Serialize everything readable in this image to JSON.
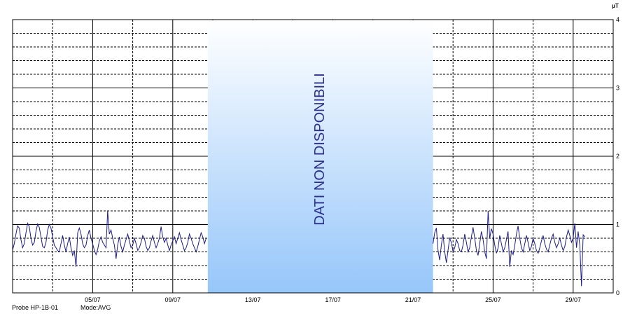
{
  "chart_data": {
    "type": "line",
    "unit_label": "µT",
    "ylim": [
      0,
      4
    ],
    "y_ticks": [
      "0",
      "1",
      "2",
      "3",
      "4"
    ],
    "x_start": "2021-07-01",
    "x_end": "2021-07-31",
    "x_ticks": [
      {
        "date": "2021-07-05",
        "label": "05/07"
      },
      {
        "date": "2021-07-09",
        "label": "09/07"
      },
      {
        "date": "2021-07-13",
        "label": "13/07"
      },
      {
        "date": "2021-07-17",
        "label": "17/07"
      },
      {
        "date": "2021-07-21",
        "label": "21/07"
      },
      {
        "date": "2021-07-25",
        "label": "25/07"
      },
      {
        "date": "2021-07-29",
        "label": "29/07"
      }
    ],
    "grid": true,
    "no_data": {
      "from": "2021-07-10 18:00",
      "to": "2021-07-22 00:00",
      "label": "DATI NON DISPONIBILI"
    },
    "series": [
      {
        "color": "#1c1c8c",
        "segments": [
          {
            "start": "2021-07-01 00:00",
            "step_hours": 2,
            "values": [
              0.63,
              0.72,
              0.86,
              0.98,
              0.95,
              0.78,
              0.66,
              0.72,
              0.88,
              1.02,
              0.97,
              0.8,
              0.7,
              0.74,
              0.9,
              1.01,
              0.96,
              0.82,
              0.68,
              0.66,
              0.74,
              0.92,
              1.0,
              0.95,
              0.82,
              0.7,
              0.66,
              0.62,
              0.6,
              0.72,
              0.84,
              0.7,
              0.6,
              0.72,
              0.82,
              0.66,
              0.55,
              0.62,
              0.72,
              0.88,
              0.95,
              0.86,
              0.72,
              0.66,
              0.7,
              0.84,
              0.92,
              0.8,
              0.72,
              0.62,
              0.56,
              0.64,
              0.76,
              0.82,
              0.74,
              0.7,
              0.66,
              0.72,
              0.86,
              0.92,
              0.8,
              0.7,
              0.62,
              0.7,
              0.82,
              0.68,
              0.6,
              0.7,
              0.78,
              0.86,
              0.76,
              0.66,
              0.7,
              0.8,
              0.72,
              0.62,
              0.66,
              0.74,
              0.84,
              0.8,
              0.68,
              0.62,
              0.66,
              0.76,
              0.84,
              0.74,
              0.66,
              0.72,
              0.8,
              0.9,
              0.82,
              0.74,
              0.8,
              0.7,
              0.62,
              0.7,
              0.76,
              0.82,
              0.72,
              0.8,
              0.88,
              0.78,
              0.7,
              0.62,
              0.66,
              0.74,
              0.86,
              0.8,
              0.72,
              0.66,
              0.6,
              0.68,
              0.78,
              0.88,
              0.82,
              0.72,
              0.8
            ],
            "spikes": [
              {
                "index": 38,
                "value": 0.38
              },
              {
                "index": 57,
                "value": 1.2
              },
              {
                "index": 62,
                "value": 0.5
              },
              {
                "index": 89,
                "value": 0.97
              }
            ]
          },
          {
            "start": "2021-07-22 00:00",
            "step_hours": 2,
            "values": [
              0.72,
              0.88,
              0.95,
              0.62,
              0.48,
              0.7,
              0.86,
              0.6,
              0.44,
              0.62,
              0.8,
              0.74,
              0.6,
              0.66,
              0.78,
              0.72,
              0.62,
              0.6,
              0.7,
              0.86,
              0.74,
              0.6,
              0.66,
              0.82,
              0.96,
              0.8,
              0.62,
              0.55,
              0.72,
              0.9,
              0.78,
              0.6,
              0.5,
              0.62,
              0.8,
              0.94,
              0.86,
              0.7,
              0.58,
              0.66,
              0.84,
              0.72,
              0.6,
              0.66,
              0.78,
              0.9,
              0.76,
              0.62,
              0.56,
              0.7,
              0.86,
              0.98,
              0.8,
              0.66,
              0.6,
              0.72,
              0.84,
              0.74,
              0.62,
              0.68,
              0.8,
              0.72,
              0.62,
              0.58,
              0.66,
              0.76,
              0.84,
              0.72,
              0.64,
              0.6,
              0.7,
              0.8,
              0.86,
              0.74,
              0.66,
              0.72,
              0.8,
              0.7,
              0.62,
              0.68,
              0.82,
              0.92,
              0.84,
              0.74,
              0.8,
              0.72,
              0.66,
              0.6,
              0.7,
              0.62,
              0.55,
              0.82
            ],
            "spikes": [
              {
                "index": 33,
                "value": 1.2
              },
              {
                "index": 46,
                "value": 0.38
              },
              {
                "index": 85,
                "value": 1.02
              },
              {
                "index": 87,
                "value": 0.9
              },
              {
                "index": 89,
                "value": 0.1
              },
              {
                "index": 90,
                "value": 0.85
              }
            ]
          }
        ]
      }
    ]
  },
  "footer": {
    "probe": "Probe HP-1B-01",
    "mode": "Mode:AVG"
  }
}
